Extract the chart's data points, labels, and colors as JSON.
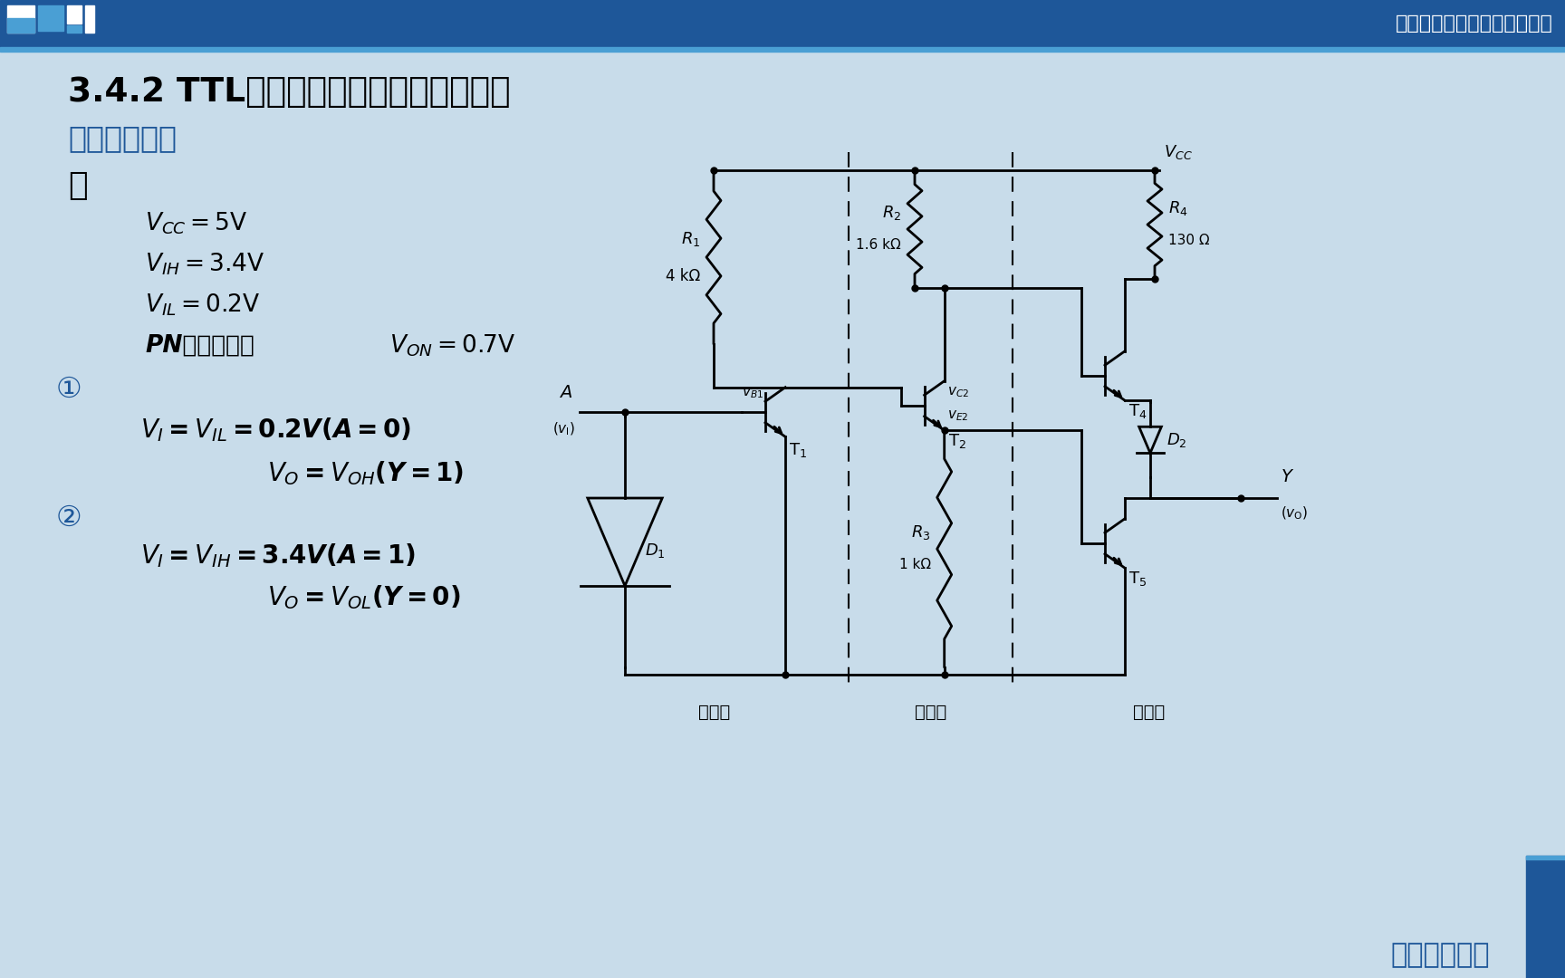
{
  "title": "3.4.2 TTL反相器的电路结构和工作原理",
  "section": "一、电路结构",
  "she": "设",
  "bg_color": "#c8dcea",
  "header_color": "#1e5799",
  "accent_color": "#4a9fd4",
  "header_text": "《数字电子技术基础》第六版",
  "footer_text": "南方医科大学",
  "label_input": "输入级",
  "label_phase": "倒相级",
  "label_output": "输出级",
  "pn_text": "PN结导通压降"
}
